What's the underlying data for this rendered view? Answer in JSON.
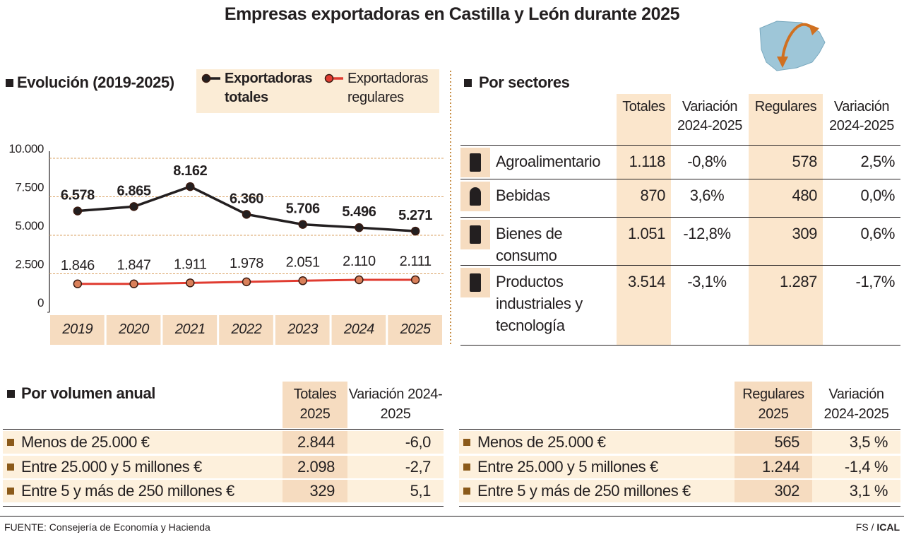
{
  "title": "Empresas exportadoras en Castilla y León durante 2025",
  "chart_data": {
    "type": "line",
    "title": "Evolución (2019-2025)",
    "categories": [
      "2019",
      "2020",
      "2021",
      "2022",
      "2023",
      "2024",
      "2025"
    ],
    "series": [
      {
        "name": "Exportadoras totales",
        "color": "#231f20",
        "values": [
          6578,
          6865,
          8162,
          6360,
          5706,
          5496,
          5271
        ],
        "value_labels": [
          "6.578",
          "6.865",
          "8.162",
          "6.360",
          "5.706",
          "5.496",
          "5.271"
        ]
      },
      {
        "name": "Exportadoras regulares",
        "color": "#e03c31",
        "values": [
          1846,
          1847,
          1911,
          1978,
          2051,
          2110,
          2111
        ],
        "value_labels": [
          "1.846",
          "1.847",
          "1.911",
          "1.978",
          "2.051",
          "2.110",
          "2.111"
        ]
      }
    ],
    "ylim": [
      0,
      10000
    ],
    "yticks": [
      0,
      {
        "value": 2500,
        "label": "2.500"
      },
      {
        "value": 5000,
        "label": "5.000"
      },
      {
        "value": 7500,
        "label": "7.500"
      },
      {
        "value": 10000,
        "label": "10.000"
      }
    ],
    "grid": true
  },
  "sectors": {
    "title": "Por sectores",
    "columns": [
      "Totales",
      "Variación 2024-2025",
      "Regulares",
      "Variación 2024-2025"
    ],
    "rows": [
      [
        "Agroalimentario",
        "1.118",
        "-0,8%",
        "578",
        "2,5%"
      ],
      [
        "Bebidas",
        "870",
        "3,6%",
        "480",
        "0,0%"
      ],
      [
        "Bienes de consumo",
        "1.051",
        "-12,8%",
        "309",
        "0,6%"
      ],
      [
        "Productos industriales y tecnología",
        "3.514",
        "-3,1%",
        "1.287",
        "-1,7%"
      ]
    ]
  },
  "volume": {
    "title": "Por volumen anual",
    "totals_columns": [
      "Totales 2025",
      "Variación 2024-2025"
    ],
    "totals_rows": [
      [
        "Menos de 25.000 €",
        "2.844",
        "-6,0"
      ],
      [
        "Entre 25.000 y 5 millones €",
        "2.098",
        "-2,7"
      ],
      [
        "Entre 5 y más de 250 millones €",
        "329",
        "5,1"
      ]
    ],
    "regular_columns": [
      "Regulares 2025",
      "Variación 2024-2025"
    ],
    "regular_rows": [
      [
        "Menos de 25.000 €",
        "565",
        "3,5 %"
      ],
      [
        "Entre 25.000 y 5 millones €",
        "1.244",
        "-1,4 %"
      ],
      [
        "Entre 5 y más de 250 millones €",
        "302",
        "3,1 %"
      ]
    ]
  },
  "footer": {
    "source": "FUENTE: Consejería de Economía y Hacienda",
    "credit_author": "FS",
    "credit_separator": "/",
    "credit_agency": "ICAL"
  }
}
